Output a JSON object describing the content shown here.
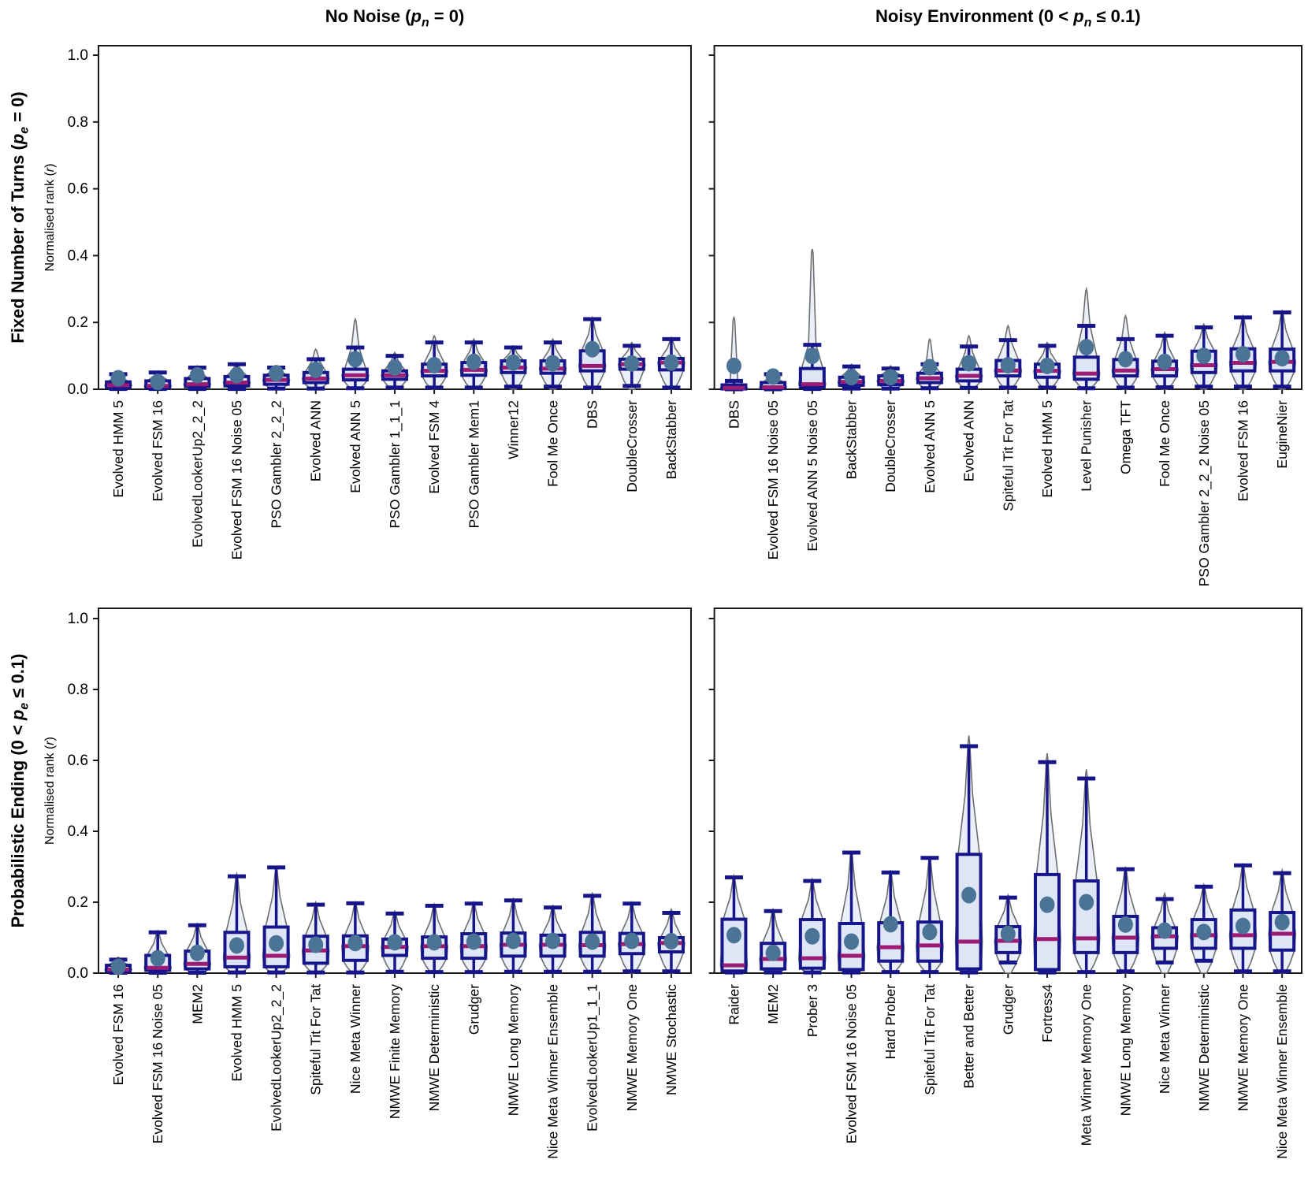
{
  "figure": {
    "col_titles": [
      {
        "segments": [
          {
            "t": "No Noise ("
          },
          {
            "t": "p",
            "style": "italic"
          },
          {
            "t": "n",
            "style": "sub"
          },
          {
            "t": " = 0)"
          }
        ]
      },
      {
        "segments": [
          {
            "t": "Noisy Environment (0 < "
          },
          {
            "t": "p",
            "style": "italic"
          },
          {
            "t": "n",
            "style": "sub"
          },
          {
            "t": " ≤ 0.1)"
          }
        ]
      }
    ],
    "row_titles": [
      {
        "segments": [
          {
            "t": "Fixed Number of Turns ("
          },
          {
            "t": "p",
            "style": "italic"
          },
          {
            "t": "e",
            "style": "sub"
          },
          {
            "t": " = 0)"
          }
        ]
      },
      {
        "segments": [
          {
            "t": "Probabilistic Ending (0 < "
          },
          {
            "t": "p",
            "style": "italic"
          },
          {
            "t": "e",
            "style": "sub"
          },
          {
            "t": " ≤ 0.1)"
          }
        ]
      }
    ],
    "ylabel_segments": [
      {
        "t": "Normalised rank ("
      },
      {
        "t": "r",
        "style": "italic"
      },
      {
        "t": ")"
      }
    ],
    "yticks": {
      "values": [
        0.0,
        0.2,
        0.4,
        0.6,
        0.8,
        1.0
      ],
      "labels": [
        "0.0",
        "0.2",
        "0.4",
        "0.6",
        "0.8",
        "1.0"
      ]
    },
    "colors": {
      "box_edge": "#16168a",
      "box_fill": "#dce4f4",
      "median": "#9c1b74",
      "mean_dot": "#4a7396",
      "violin_edge": "#6e6e6e",
      "violin_fill": "#e9eef7",
      "spine": "#1a1a1a",
      "text": "#000000",
      "background": "#ffffff"
    }
  },
  "chart_data": [
    {
      "key": "fixed_no_noise",
      "row": 0,
      "col": 0,
      "type": "violin-box",
      "ylabel": "Normalised rank (r)",
      "ylim": [
        0,
        1
      ],
      "strategies": [
        {
          "name": "Evolved HMM 5",
          "whisker_low": 0.001,
          "q1": 0.005,
          "median": 0.012,
          "q3": 0.022,
          "whisker_high": 0.045,
          "mean": 0.033,
          "violin_max": 0.05
        },
        {
          "name": "Evolved FSM 16",
          "whisker_low": 0.001,
          "q1": 0.004,
          "median": 0.01,
          "q3": 0.025,
          "whisker_high": 0.05,
          "mean": 0.022,
          "violin_max": 0.055
        },
        {
          "name": "EvolvedLookerUp2_2_2",
          "whisker_low": 0.001,
          "q1": 0.008,
          "median": 0.015,
          "q3": 0.032,
          "whisker_high": 0.065,
          "mean": 0.042,
          "violin_max": 0.07
        },
        {
          "name": "Evolved FSM 16 Noise 05",
          "whisker_low": 0.001,
          "q1": 0.01,
          "median": 0.02,
          "q3": 0.038,
          "whisker_high": 0.075,
          "mean": 0.042,
          "violin_max": 0.08
        },
        {
          "name": "PSO Gambler 2_2_2",
          "whisker_low": 0.002,
          "q1": 0.015,
          "median": 0.028,
          "q3": 0.042,
          "whisker_high": 0.065,
          "mean": 0.048,
          "violin_max": 0.07
        },
        {
          "name": "Evolved ANN",
          "whisker_low": 0.002,
          "q1": 0.02,
          "median": 0.032,
          "q3": 0.05,
          "whisker_high": 0.09,
          "mean": 0.058,
          "violin_max": 0.12
        },
        {
          "name": "Evolved ANN 5",
          "whisker_low": 0.003,
          "q1": 0.028,
          "median": 0.042,
          "q3": 0.06,
          "whisker_high": 0.125,
          "mean": 0.09,
          "violin_max": 0.21
        },
        {
          "name": "PSO Gambler 1_1_1",
          "whisker_low": 0.005,
          "q1": 0.03,
          "median": 0.042,
          "q3": 0.055,
          "whisker_high": 0.1,
          "mean": 0.065,
          "violin_max": 0.11
        },
        {
          "name": "Evolved FSM 4",
          "whisker_low": 0.005,
          "q1": 0.04,
          "median": 0.055,
          "q3": 0.075,
          "whisker_high": 0.14,
          "mean": 0.072,
          "violin_max": 0.16
        },
        {
          "name": "PSO Gambler Mem1",
          "whisker_low": 0.005,
          "q1": 0.042,
          "median": 0.058,
          "q3": 0.08,
          "whisker_high": 0.14,
          "mean": 0.082,
          "violin_max": 0.15
        },
        {
          "name": "Winner12",
          "whisker_low": 0.008,
          "q1": 0.05,
          "median": 0.065,
          "q3": 0.085,
          "whisker_high": 0.125,
          "mean": 0.08,
          "violin_max": 0.13
        },
        {
          "name": "Fool Me Once",
          "whisker_low": 0.008,
          "q1": 0.048,
          "median": 0.062,
          "q3": 0.085,
          "whisker_high": 0.14,
          "mean": 0.078,
          "violin_max": 0.15
        },
        {
          "name": "DBS",
          "whisker_low": 0.005,
          "q1": 0.055,
          "median": 0.07,
          "q3": 0.115,
          "whisker_high": 0.21,
          "mean": 0.12,
          "violin_max": 0.215
        },
        {
          "name": "DoubleCrosser",
          "whisker_low": 0.01,
          "q1": 0.06,
          "median": 0.075,
          "q3": 0.09,
          "whisker_high": 0.13,
          "mean": 0.077,
          "violin_max": 0.14
        },
        {
          "name": "BackStabber",
          "whisker_low": 0.005,
          "q1": 0.058,
          "median": 0.08,
          "q3": 0.092,
          "whisker_high": 0.15,
          "mean": 0.08,
          "violin_max": 0.155
        }
      ]
    },
    {
      "key": "fixed_noisy",
      "row": 0,
      "col": 1,
      "type": "violin-box",
      "ylim": [
        0,
        1
      ],
      "strategies": [
        {
          "name": "DBS",
          "whisker_low": 0.0,
          "q1": 0.001,
          "median": 0.004,
          "q3": 0.013,
          "whisker_high": 0.025,
          "mean": 0.07,
          "violin_max": 0.215
        },
        {
          "name": "Evolved FSM 16 Noise 05",
          "whisker_low": 0.0,
          "q1": 0.002,
          "median": 0.006,
          "q3": 0.02,
          "whisker_high": 0.045,
          "mean": 0.038,
          "violin_max": 0.05
        },
        {
          "name": "Evolved ANN 5 Noise 05",
          "whisker_low": 0.001,
          "q1": 0.006,
          "median": 0.015,
          "q3": 0.062,
          "whisker_high": 0.133,
          "mean": 0.1,
          "violin_max": 0.42
        },
        {
          "name": "BackStabber",
          "whisker_low": 0.002,
          "q1": 0.012,
          "median": 0.022,
          "q3": 0.036,
          "whisker_high": 0.068,
          "mean": 0.036,
          "violin_max": 0.075
        },
        {
          "name": "DoubleCrosser",
          "whisker_low": 0.002,
          "q1": 0.014,
          "median": 0.025,
          "q3": 0.04,
          "whisker_high": 0.062,
          "mean": 0.036,
          "violin_max": 0.07
        },
        {
          "name": "Evolved ANN 5",
          "whisker_low": 0.003,
          "q1": 0.02,
          "median": 0.033,
          "q3": 0.048,
          "whisker_high": 0.075,
          "mean": 0.066,
          "violin_max": 0.15
        },
        {
          "name": "Evolved ANN",
          "whisker_low": 0.004,
          "q1": 0.025,
          "median": 0.04,
          "q3": 0.06,
          "whisker_high": 0.128,
          "mean": 0.078,
          "violin_max": 0.16
        },
        {
          "name": "Spiteful Tit For Tat",
          "whisker_low": 0.005,
          "q1": 0.04,
          "median": 0.056,
          "q3": 0.086,
          "whisker_high": 0.147,
          "mean": 0.072,
          "violin_max": 0.19
        },
        {
          "name": "Evolved HMM 5",
          "whisker_low": 0.005,
          "q1": 0.036,
          "median": 0.055,
          "q3": 0.075,
          "whisker_high": 0.13,
          "mean": 0.07,
          "violin_max": 0.14
        },
        {
          "name": "Level Punisher",
          "whisker_low": 0.003,
          "q1": 0.03,
          "median": 0.047,
          "q3": 0.096,
          "whisker_high": 0.19,
          "mean": 0.126,
          "violin_max": 0.3
        },
        {
          "name": "Omega TFT",
          "whisker_low": 0.005,
          "q1": 0.04,
          "median": 0.056,
          "q3": 0.089,
          "whisker_high": 0.15,
          "mean": 0.09,
          "violin_max": 0.22
        },
        {
          "name": "Fool Me Once",
          "whisker_low": 0.006,
          "q1": 0.04,
          "median": 0.06,
          "q3": 0.084,
          "whisker_high": 0.16,
          "mean": 0.082,
          "violin_max": 0.17
        },
        {
          "name": "PSO Gambler 2_2_2 Noise 05",
          "whisker_low": 0.008,
          "q1": 0.05,
          "median": 0.072,
          "q3": 0.114,
          "whisker_high": 0.185,
          "mean": 0.1,
          "violin_max": 0.195
        },
        {
          "name": "Evolved FSM 16",
          "whisker_low": 0.008,
          "q1": 0.055,
          "median": 0.079,
          "q3": 0.121,
          "whisker_high": 0.215,
          "mean": 0.105,
          "violin_max": 0.22
        },
        {
          "name": "EugineNier",
          "whisker_low": 0.008,
          "q1": 0.055,
          "median": 0.082,
          "q3": 0.12,
          "whisker_high": 0.23,
          "mean": 0.093,
          "violin_max": 0.235
        }
      ]
    },
    {
      "key": "prob_no_noise",
      "row": 1,
      "col": 0,
      "type": "violin-box",
      "ylabel": "Normalised rank (r)",
      "ylim": [
        0,
        1
      ],
      "strategies": [
        {
          "name": "Evolved FSM 16",
          "whisker_low": 0.001,
          "q1": 0.004,
          "median": 0.01,
          "q3": 0.022,
          "whisker_high": 0.038,
          "mean": 0.018,
          "violin_max": 0.045
        },
        {
          "name": "Evolved FSM 16 Noise 05",
          "whisker_low": 0.001,
          "q1": 0.008,
          "median": 0.015,
          "q3": 0.05,
          "whisker_high": 0.115,
          "mean": 0.042,
          "violin_max": 0.12
        },
        {
          "name": "MEM2",
          "whisker_low": 0.001,
          "q1": 0.012,
          "median": 0.026,
          "q3": 0.062,
          "whisker_high": 0.135,
          "mean": 0.057,
          "violin_max": 0.14
        },
        {
          "name": "Evolved HMM 5",
          "whisker_low": 0.002,
          "q1": 0.018,
          "median": 0.044,
          "q3": 0.115,
          "whisker_high": 0.273,
          "mean": 0.078,
          "violin_max": 0.28
        },
        {
          "name": "EvolvedLookerUp2_2_2",
          "whisker_low": 0.002,
          "q1": 0.018,
          "median": 0.049,
          "q3": 0.13,
          "whisker_high": 0.298,
          "mean": 0.084,
          "violin_max": 0.3
        },
        {
          "name": "Spiteful Tit For Tat",
          "whisker_low": 0.002,
          "q1": 0.028,
          "median": 0.064,
          "q3": 0.104,
          "whisker_high": 0.193,
          "mean": 0.08,
          "violin_max": 0.2
        },
        {
          "name": "Nice Meta Winner",
          "whisker_low": 0.002,
          "q1": 0.036,
          "median": 0.076,
          "q3": 0.105,
          "whisker_high": 0.197,
          "mean": 0.085,
          "violin_max": 0.2
        },
        {
          "name": "NMWE Finite Memory",
          "whisker_low": 0.004,
          "q1": 0.05,
          "median": 0.074,
          "q3": 0.096,
          "whisker_high": 0.168,
          "mean": 0.087,
          "violin_max": 0.175
        },
        {
          "name": "NMWE Deterministic",
          "whisker_low": 0.003,
          "q1": 0.042,
          "median": 0.076,
          "q3": 0.102,
          "whisker_high": 0.19,
          "mean": 0.087,
          "violin_max": 0.195
        },
        {
          "name": "Grudger",
          "whisker_low": 0.003,
          "q1": 0.042,
          "median": 0.076,
          "q3": 0.111,
          "whisker_high": 0.196,
          "mean": 0.089,
          "violin_max": 0.2
        },
        {
          "name": "NMWE Long Memory",
          "whisker_low": 0.004,
          "q1": 0.048,
          "median": 0.08,
          "q3": 0.113,
          "whisker_high": 0.205,
          "mean": 0.091,
          "violin_max": 0.21
        },
        {
          "name": "Nice Meta Winner Ensemble",
          "whisker_low": 0.004,
          "q1": 0.048,
          "median": 0.08,
          "q3": 0.107,
          "whisker_high": 0.185,
          "mean": 0.091,
          "violin_max": 0.19
        },
        {
          "name": "EvolvedLookerUp1_1_1",
          "whisker_low": 0.004,
          "q1": 0.048,
          "median": 0.079,
          "q3": 0.115,
          "whisker_high": 0.218,
          "mean": 0.089,
          "violin_max": 0.225
        },
        {
          "name": "NMWE Memory One",
          "whisker_low": 0.005,
          "q1": 0.055,
          "median": 0.082,
          "q3": 0.112,
          "whisker_high": 0.196,
          "mean": 0.091,
          "violin_max": 0.2
        },
        {
          "name": "NMWE Stochastic",
          "whisker_low": 0.005,
          "q1": 0.06,
          "median": 0.085,
          "q3": 0.1,
          "whisker_high": 0.17,
          "mean": 0.09,
          "violin_max": 0.18
        }
      ]
    },
    {
      "key": "prob_noisy",
      "row": 1,
      "col": 1,
      "type": "violin-box",
      "ylim": [
        0,
        1
      ],
      "strategies": [
        {
          "name": "Raider",
          "whisker_low": 0.002,
          "q1": 0.006,
          "median": 0.022,
          "q3": 0.152,
          "whisker_high": 0.27,
          "mean": 0.107,
          "violin_max": 0.275
        },
        {
          "name": "MEM2",
          "whisker_low": 0.002,
          "q1": 0.012,
          "median": 0.04,
          "q3": 0.084,
          "whisker_high": 0.175,
          "mean": 0.057,
          "violin_max": 0.18
        },
        {
          "name": "Prober 3",
          "whisker_low": 0.002,
          "q1": 0.014,
          "median": 0.042,
          "q3": 0.151,
          "whisker_high": 0.26,
          "mean": 0.104,
          "violin_max": 0.265
        },
        {
          "name": "Evolved FSM 16 Noise 05",
          "whisker_low": 0.002,
          "q1": 0.01,
          "median": 0.049,
          "q3": 0.14,
          "whisker_high": 0.34,
          "mean": 0.089,
          "violin_max": 0.345
        },
        {
          "name": "Hard Prober",
          "whisker_low": 0.003,
          "q1": 0.034,
          "median": 0.073,
          "q3": 0.142,
          "whisker_high": 0.284,
          "mean": 0.138,
          "violin_max": 0.29
        },
        {
          "name": "Spiteful Tit For Tat",
          "whisker_low": 0.003,
          "q1": 0.034,
          "median": 0.078,
          "q3": 0.144,
          "whisker_high": 0.325,
          "mean": 0.116,
          "violin_max": 0.33
        },
        {
          "name": "Better and Better",
          "whisker_low": 0.002,
          "q1": 0.012,
          "median": 0.089,
          "q3": 0.335,
          "whisker_high": 0.64,
          "mean": 0.22,
          "violin_max": 0.67
        },
        {
          "name": "Grudger",
          "whisker_low": 0.03,
          "q1": 0.058,
          "median": 0.091,
          "q3": 0.131,
          "whisker_high": 0.213,
          "mean": 0.111,
          "violin_max": 0.22
        },
        {
          "name": "Fortress4",
          "whisker_low": 0.002,
          "q1": 0.01,
          "median": 0.096,
          "q3": 0.278,
          "whisker_high": 0.595,
          "mean": 0.193,
          "violin_max": 0.62
        },
        {
          "name": "Meta Winner Memory One",
          "whisker_low": 0.003,
          "q1": 0.058,
          "median": 0.098,
          "q3": 0.26,
          "whisker_high": 0.549,
          "mean": 0.2,
          "violin_max": 0.575
        },
        {
          "name": "NMWE Long Memory",
          "whisker_low": 0.005,
          "q1": 0.058,
          "median": 0.1,
          "q3": 0.16,
          "whisker_high": 0.293,
          "mean": 0.137,
          "violin_max": 0.3
        },
        {
          "name": "Nice Meta Winner",
          "whisker_low": 0.03,
          "q1": 0.07,
          "median": 0.104,
          "q3": 0.128,
          "whisker_high": 0.209,
          "mean": 0.12,
          "violin_max": 0.225
        },
        {
          "name": "NMWE Deterministic",
          "whisker_low": 0.035,
          "q1": 0.07,
          "median": 0.107,
          "q3": 0.151,
          "whisker_high": 0.244,
          "mean": 0.116,
          "violin_max": 0.25
        },
        {
          "name": "NMWE Memory One",
          "whisker_low": 0.005,
          "q1": 0.07,
          "median": 0.107,
          "q3": 0.178,
          "whisker_high": 0.304,
          "mean": 0.133,
          "violin_max": 0.31
        },
        {
          "name": "Nice Meta Winner Ensemble",
          "whisker_low": 0.005,
          "q1": 0.065,
          "median": 0.111,
          "q3": 0.171,
          "whisker_high": 0.282,
          "mean": 0.144,
          "violin_max": 0.29
        }
      ]
    }
  ]
}
